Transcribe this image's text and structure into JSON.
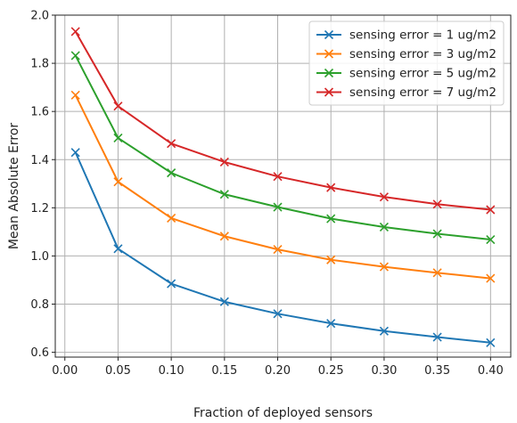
{
  "chart_data": {
    "type": "line",
    "xlabel": "Fraction of deployed sensors",
    "ylabel": "Mean Absolute Error",
    "xlim": [
      -0.009,
      0.419
    ],
    "ylim": [
      0.58,
      2.0
    ],
    "x_ticks": [
      0.0,
      0.05,
      0.1,
      0.15,
      0.2,
      0.25,
      0.3,
      0.35,
      0.4
    ],
    "x_tick_labels": [
      "0.00",
      "0.05",
      "0.10",
      "0.15",
      "0.20",
      "0.25",
      "0.30",
      "0.35",
      "0.40"
    ],
    "y_ticks": [
      0.6,
      0.8,
      1.0,
      1.2,
      1.4,
      1.6,
      1.8,
      2.0
    ],
    "y_tick_labels": [
      "0.6",
      "0.8",
      "1.0",
      "1.2",
      "1.4",
      "1.6",
      "1.8",
      "2.0"
    ],
    "grid": true,
    "legend_position": "top-right",
    "marker": "x",
    "x": [
      0.01,
      0.05,
      0.1,
      0.15,
      0.2,
      0.25,
      0.3,
      0.35,
      0.4
    ],
    "series": [
      {
        "name": "sensing error = 1 ug/m2",
        "color": "#1f77b4",
        "values": [
          1.43,
          1.03,
          0.885,
          0.81,
          0.76,
          0.72,
          0.688,
          0.663,
          0.64
        ]
      },
      {
        "name": "sensing error = 3 ug/m2",
        "color": "#ff7f0e",
        "values": [
          1.668,
          1.308,
          1.157,
          1.082,
          1.027,
          0.984,
          0.955,
          0.93,
          0.907
        ]
      },
      {
        "name": "sensing error = 5 ug/m2",
        "color": "#2ca02c",
        "values": [
          1.832,
          1.49,
          1.345,
          1.256,
          1.203,
          1.155,
          1.12,
          1.092,
          1.068
        ]
      },
      {
        "name": "sensing error = 7 ug/m2",
        "color": "#d62728",
        "values": [
          1.932,
          1.622,
          1.467,
          1.39,
          1.33,
          1.284,
          1.245,
          1.215,
          1.192
        ]
      }
    ]
  }
}
